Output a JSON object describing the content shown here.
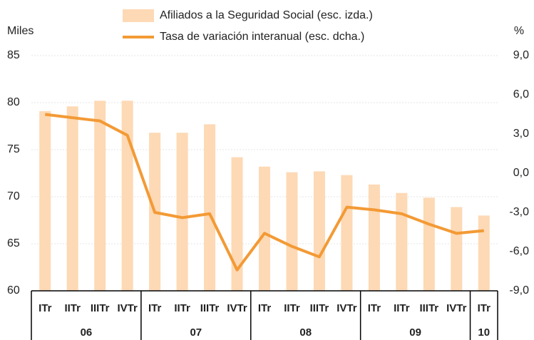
{
  "chart_data": {
    "type": "bar-line",
    "y_label": "Miles",
    "y2_label": "%",
    "groups": [
      {
        "label": "06",
        "categories": [
          "ITr",
          "IITr",
          "IIITr",
          "IVTr"
        ]
      },
      {
        "label": "07",
        "categories": [
          "ITr",
          "IITr",
          "IIITr",
          "IVTr"
        ]
      },
      {
        "label": "08",
        "categories": [
          "ITr",
          "IITr",
          "IIITr",
          "IVTr"
        ]
      },
      {
        "label": "09",
        "categories": [
          "ITr",
          "IITr",
          "IIITr",
          "IVTr"
        ]
      },
      {
        "label": "10",
        "categories": [
          "ITr"
        ]
      }
    ],
    "series": [
      {
        "name": "Afiliados a la Seguridad Social (esc. izda.)",
        "type": "bar",
        "color": "#fdd9b5",
        "values": [
          79.1,
          79.6,
          80.2,
          80.2,
          76.8,
          76.8,
          77.7,
          74.2,
          73.2,
          72.6,
          72.7,
          72.3,
          71.3,
          70.4,
          69.9,
          68.9,
          68.0
        ]
      },
      {
        "name": "Tasa de variación interanual (esc. dcha.)",
        "type": "line",
        "axis": "y2",
        "color": "#f39a35",
        "values": [
          4.5,
          4.25,
          4.0,
          2.9,
          -3.0,
          -3.4,
          -3.1,
          -7.4,
          -4.6,
          -5.6,
          -6.4,
          -2.6,
          -2.8,
          -3.1,
          -3.9,
          -4.6,
          -4.4
        ]
      }
    ],
    "ylim": [
      60,
      85
    ],
    "yticks": [
      60,
      65,
      70,
      75,
      80,
      85
    ],
    "y2lim": [
      -9,
      9
    ],
    "y2ticks": [
      {
        "value": -9,
        "label": "-9,0"
      },
      {
        "value": -6,
        "label": "-6,0"
      },
      {
        "value": -3,
        "label": "-3,0"
      },
      {
        "value": 0,
        "label": "0,0"
      },
      {
        "value": 3,
        "label": "3,0"
      },
      {
        "value": 6,
        "label": "6,0"
      },
      {
        "value": 9,
        "label": "9,0"
      }
    ],
    "grid": true
  }
}
